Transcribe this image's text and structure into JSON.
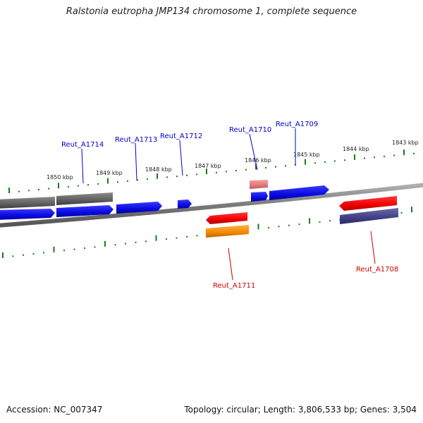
{
  "title": "Ralstonia eutropha JMP134 chromosome 1, complete sequence",
  "accession": "Accession: NC_007347",
  "summary": "Topology: circular; Length: 3,806,533 bp; Genes: 3,504",
  "scale_labels": [
    "1850 kbp",
    "1849 kbp",
    "1848 kbp",
    "1847 kbp",
    "1846 kbp",
    "1845 kbp",
    "1844 kbp",
    "1843 kbp"
  ],
  "gene_labels": {
    "a1714": "Reut_A1714",
    "a1713": "Reut_A1713",
    "a1712": "Reut_A1712",
    "a1710": "Reut_A1710",
    "a1709": "Reut_A1709",
    "a1711": "Reut_A1711",
    "a1708": "Reut_A1708"
  },
  "colors": {
    "forward_gene": "#0a0ae0",
    "reverse_gene": "#ee0000",
    "backbone": "#7a7a7a",
    "tick": "#1a7a1a",
    "label_forward": "#0000cc",
    "label_reverse": "#cc0000"
  }
}
